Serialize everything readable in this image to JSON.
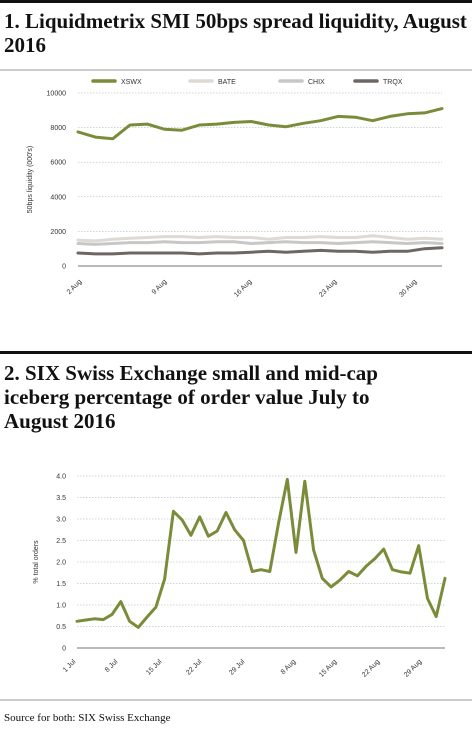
{
  "chart_data": [
    {
      "type": "line",
      "title": "1. Liquidmetrix SMI 50bps spread liquidity, August 2016",
      "ylabel": "50bps liquidity (000's)",
      "ylim": [
        0,
        10000
      ],
      "yticks": [
        0,
        2000,
        4000,
        6000,
        8000,
        10000
      ],
      "xtick_labels": [
        "2 Aug",
        "9 Aug",
        "16 Aug",
        "23 Aug",
        "30 Aug"
      ],
      "legend_position": "top",
      "grid": "horizontal",
      "series": [
        {
          "name": "XSWX",
          "color": "#7a8c3a",
          "values": [
            7750,
            7450,
            7350,
            8150,
            8200,
            7900,
            7850,
            8150,
            8200,
            8300,
            8350,
            8150,
            8050,
            8250,
            8400,
            8650,
            8600,
            8400,
            8650,
            8800,
            8850,
            9100
          ]
        },
        {
          "name": "BATE",
          "color": "#ddd9d5",
          "values": [
            1500,
            1450,
            1550,
            1600,
            1650,
            1700,
            1700,
            1650,
            1700,
            1650,
            1650,
            1550,
            1650,
            1650,
            1700,
            1650,
            1650,
            1750,
            1650,
            1550,
            1600,
            1550
          ]
        },
        {
          "name": "CHIX",
          "color": "#c9c7c6",
          "values": [
            1300,
            1250,
            1300,
            1350,
            1350,
            1400,
            1350,
            1350,
            1400,
            1400,
            1300,
            1350,
            1400,
            1350,
            1350,
            1300,
            1350,
            1400,
            1350,
            1300,
            1350,
            1300
          ]
        },
        {
          "name": "TRQX",
          "color": "#6e6663",
          "values": [
            750,
            700,
            700,
            750,
            750,
            750,
            750,
            700,
            750,
            750,
            800,
            850,
            800,
            850,
            900,
            850,
            850,
            800,
            850,
            850,
            1000,
            1050
          ]
        }
      ]
    },
    {
      "type": "line",
      "title": "2. SIX Swiss Exchange small and mid-cap iceberg  percentage of order value July to August 2016",
      "ylabel": "% total orders",
      "ylim": [
        0,
        4.0
      ],
      "yticks": [
        "0",
        "0.5",
        "1.0",
        "1.5",
        "2.0",
        "2.5",
        "3.0",
        "3.5",
        "4.0"
      ],
      "xtick_labels": [
        "1 Jul",
        "8 Jul",
        "15 Jul",
        "22 Jul",
        "29 Jul",
        "8 Aug",
        "15 Aug",
        "22 Aug",
        "29 Aug"
      ],
      "grid": "horizontal",
      "series": [
        {
          "color": "#7a8c3a",
          "values": [
            0.62,
            0.65,
            0.68,
            0.66,
            0.78,
            1.08,
            0.62,
            0.48,
            0.72,
            0.95,
            1.6,
            3.18,
            2.98,
            2.62,
            3.05,
            2.6,
            2.72,
            3.15,
            2.75,
            2.5,
            1.78,
            1.82,
            1.78,
            2.9,
            3.92,
            2.22,
            3.88,
            2.28,
            1.62,
            1.42,
            1.58,
            1.78,
            1.68,
            1.9,
            2.08,
            2.3,
            1.82,
            1.77,
            1.74,
            2.38,
            1.15,
            0.73,
            1.62
          ]
        }
      ]
    }
  ],
  "source": "Source for both: SIX Swiss Exchange"
}
